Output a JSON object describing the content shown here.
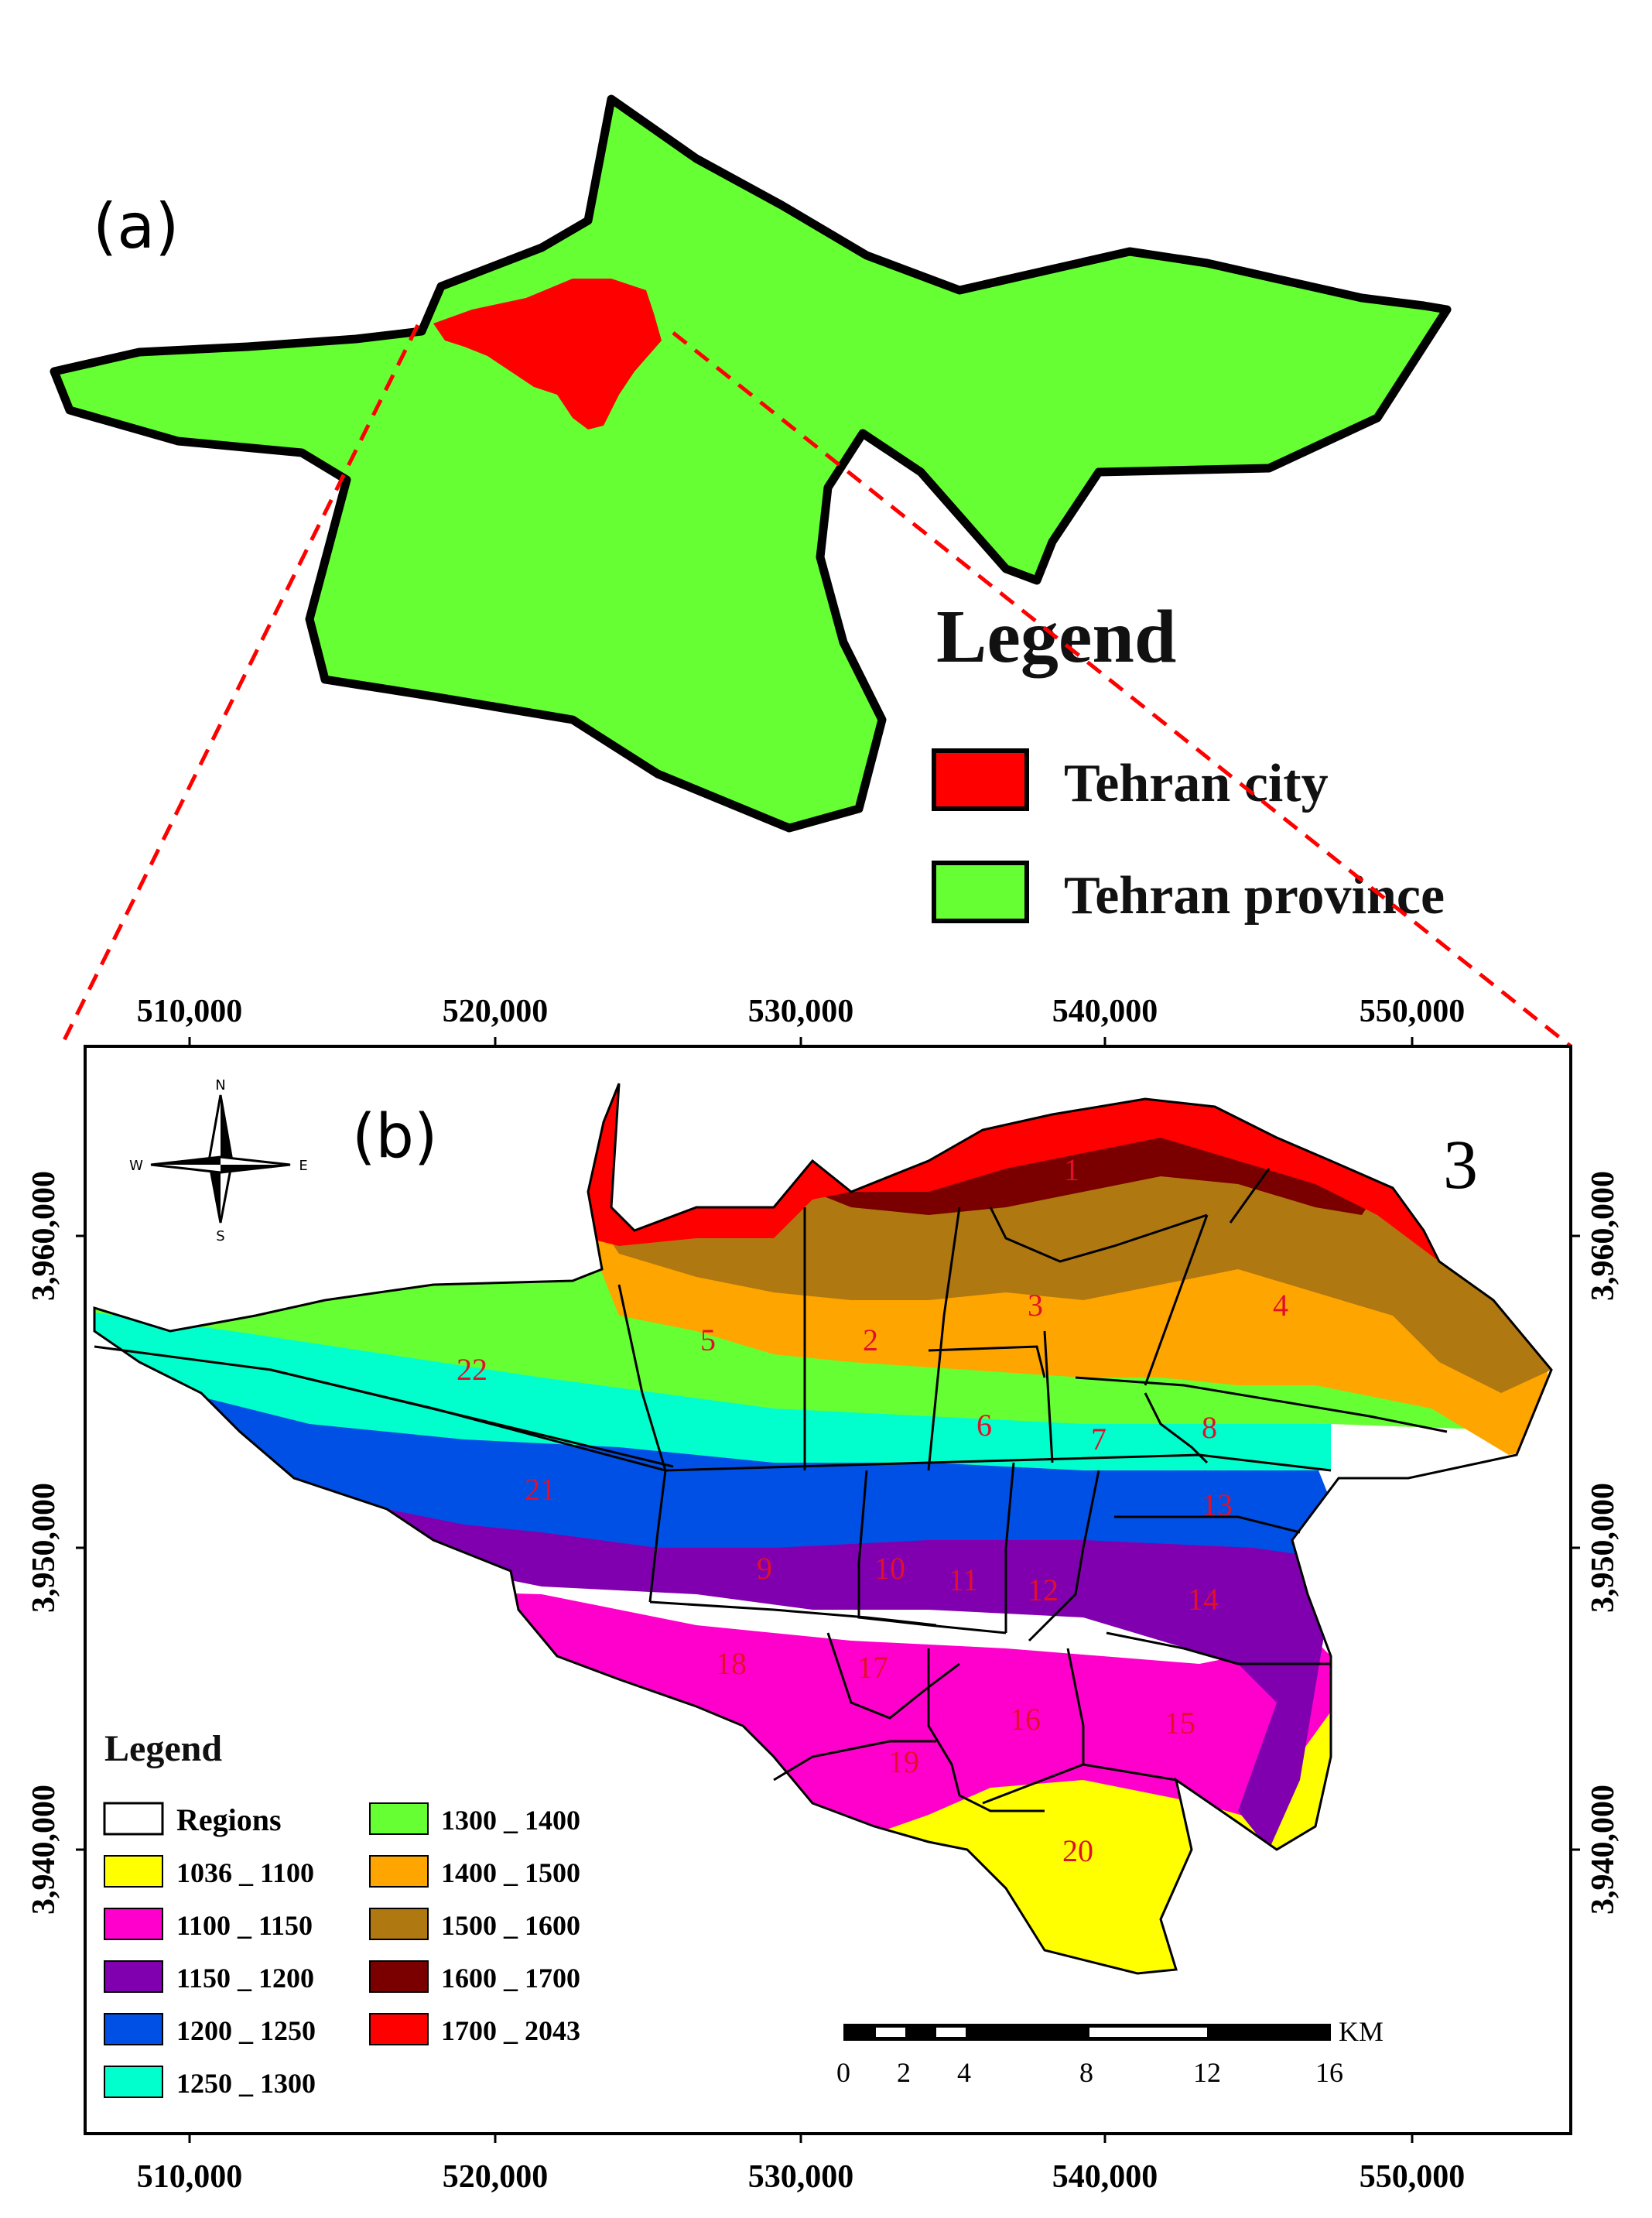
{
  "panel_a": {
    "label": "(a)",
    "legend_title": "Legend",
    "legend_items": [
      {
        "label": "Tehran city",
        "color": "#ff0000"
      },
      {
        "label": "Tehran province",
        "color": "#66ff33"
      }
    ]
  },
  "panel_b": {
    "label": "(b)",
    "map_number": "3",
    "x_ticks": [
      "510,000",
      "520,000",
      "530,000",
      "540,000",
      "550,000"
    ],
    "y_ticks": [
      "3,960,000",
      "3,950,000",
      "3,940,000"
    ],
    "compass": {
      "n": "N",
      "s": "S",
      "e": "E",
      "w": "W"
    },
    "regions": [
      "1",
      "2",
      "3",
      "4",
      "5",
      "6",
      "7",
      "8",
      "9",
      "10",
      "11",
      "12",
      "13",
      "14",
      "15",
      "16",
      "17",
      "18",
      "19",
      "20",
      "21",
      "22"
    ],
    "legend_title": "Legend",
    "legend_regions_label": "Regions",
    "elevation_classes": [
      {
        "label": "1036 _ 1100",
        "color": "#ffff00"
      },
      {
        "label": "1100 _ 1150",
        "color": "#ff00cc"
      },
      {
        "label": "1150 _ 1200",
        "color": "#8000b0"
      },
      {
        "label": "1200 _ 1250",
        "color": "#0050e6"
      },
      {
        "label": "1250 _ 1300",
        "color": "#00ffcc"
      },
      {
        "label": "1300 _ 1400",
        "color": "#66ff33"
      },
      {
        "label": "1400 _ 1500",
        "color": "#ffa500"
      },
      {
        "label": "1500 _ 1600",
        "color": "#b07810"
      },
      {
        "label": "1600 _ 1700",
        "color": "#7a0000"
      },
      {
        "label": "1700 _ 2043",
        "color": "#ff0000"
      }
    ],
    "scale_bar": {
      "unit": "KM",
      "labels": [
        "0",
        "2",
        "4",
        "8",
        "12",
        "16"
      ]
    }
  }
}
